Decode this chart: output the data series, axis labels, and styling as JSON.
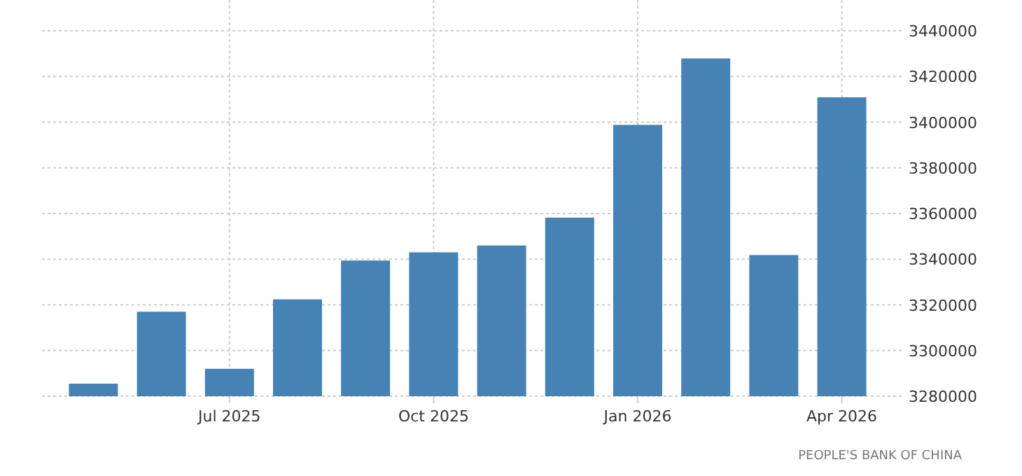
{
  "chart_data": {
    "type": "bar",
    "categories": [
      null,
      null,
      "Jul 2025",
      null,
      null,
      "Oct 2025",
      null,
      null,
      "Jan 2026",
      null,
      null,
      "Apr 2026"
    ],
    "values": [
      3285500,
      3317000,
      3292000,
      3322400,
      3339400,
      3343000,
      3346000,
      3358200,
      3398800,
      3427900,
      3341800,
      3410900
    ],
    "color": "#4682b4",
    "ylim": [
      3280000,
      3440000
    ],
    "yticks": [
      3280000,
      3300000,
      3320000,
      3340000,
      3360000,
      3380000,
      3400000,
      3420000,
      3440000
    ],
    "grid": true,
    "annotations": [
      "PEOPLE'S BANK OF CHINA"
    ]
  }
}
